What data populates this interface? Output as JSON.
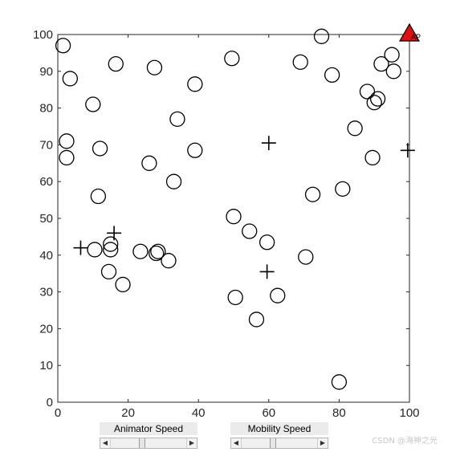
{
  "chart_data": {
    "type": "scatter",
    "xlim": [
      0,
      100
    ],
    "ylim": [
      0,
      100
    ],
    "xticks": [
      0,
      20,
      40,
      60,
      80,
      100
    ],
    "yticks": [
      0,
      10,
      20,
      30,
      40,
      50,
      60,
      70,
      80,
      90,
      100
    ],
    "grid": false,
    "series": [
      {
        "marker": "circle",
        "color": "#000000",
        "points": [
          [
            1.5,
            97
          ],
          [
            3.5,
            88
          ],
          [
            16.5,
            92
          ],
          [
            27.5,
            91
          ],
          [
            10,
            81
          ],
          [
            2.5,
            71
          ],
          [
            2.5,
            66.5
          ],
          [
            12,
            69
          ],
          [
            11.5,
            56
          ],
          [
            26,
            65
          ],
          [
            34,
            77
          ],
          [
            39,
            86.5
          ],
          [
            33,
            60
          ],
          [
            39,
            68.5
          ],
          [
            49.5,
            93.5
          ],
          [
            69,
            92.5
          ],
          [
            75,
            99.5
          ],
          [
            78,
            89
          ],
          [
            88,
            84.5
          ],
          [
            90,
            81.5
          ],
          [
            91,
            82.5
          ],
          [
            92,
            92
          ],
          [
            95,
            94.5
          ],
          [
            95.5,
            90
          ],
          [
            84.5,
            74.5
          ],
          [
            89.5,
            66.5
          ],
          [
            81,
            58
          ],
          [
            72.5,
            56.5
          ],
          [
            10.5,
            41.5
          ],
          [
            15,
            43
          ],
          [
            15,
            41.5
          ],
          [
            14.5,
            35.5
          ],
          [
            18.5,
            32
          ],
          [
            23.5,
            41
          ],
          [
            28.5,
            41
          ],
          [
            28,
            40.5
          ],
          [
            31.5,
            38.5
          ],
          [
            50,
            50.5
          ],
          [
            54.5,
            46.5
          ],
          [
            59.5,
            43.5
          ],
          [
            70.5,
            39.5
          ],
          [
            50.5,
            28.5
          ],
          [
            62.5,
            29
          ],
          [
            56.5,
            22.5
          ],
          [
            80,
            5.5
          ]
        ]
      },
      {
        "marker": "plus",
        "color": "#000000",
        "points": [
          [
            6.5,
            42
          ],
          [
            16,
            46
          ],
          [
            60,
            70.5
          ],
          [
            99.5,
            68.5
          ],
          [
            59.5,
            35.5
          ]
        ]
      },
      {
        "marker": "triangle",
        "color": "#dd1111",
        "points": [
          [
            100,
            100
          ]
        ],
        "label": "AP"
      }
    ]
  },
  "controls": {
    "animator_speed_label": "Animator Speed",
    "mobility_speed_label": "Mobility Speed",
    "animator_speed_value": 0.4,
    "mobility_speed_value": 0.4
  },
  "watermark": "CSDN @海神之光"
}
